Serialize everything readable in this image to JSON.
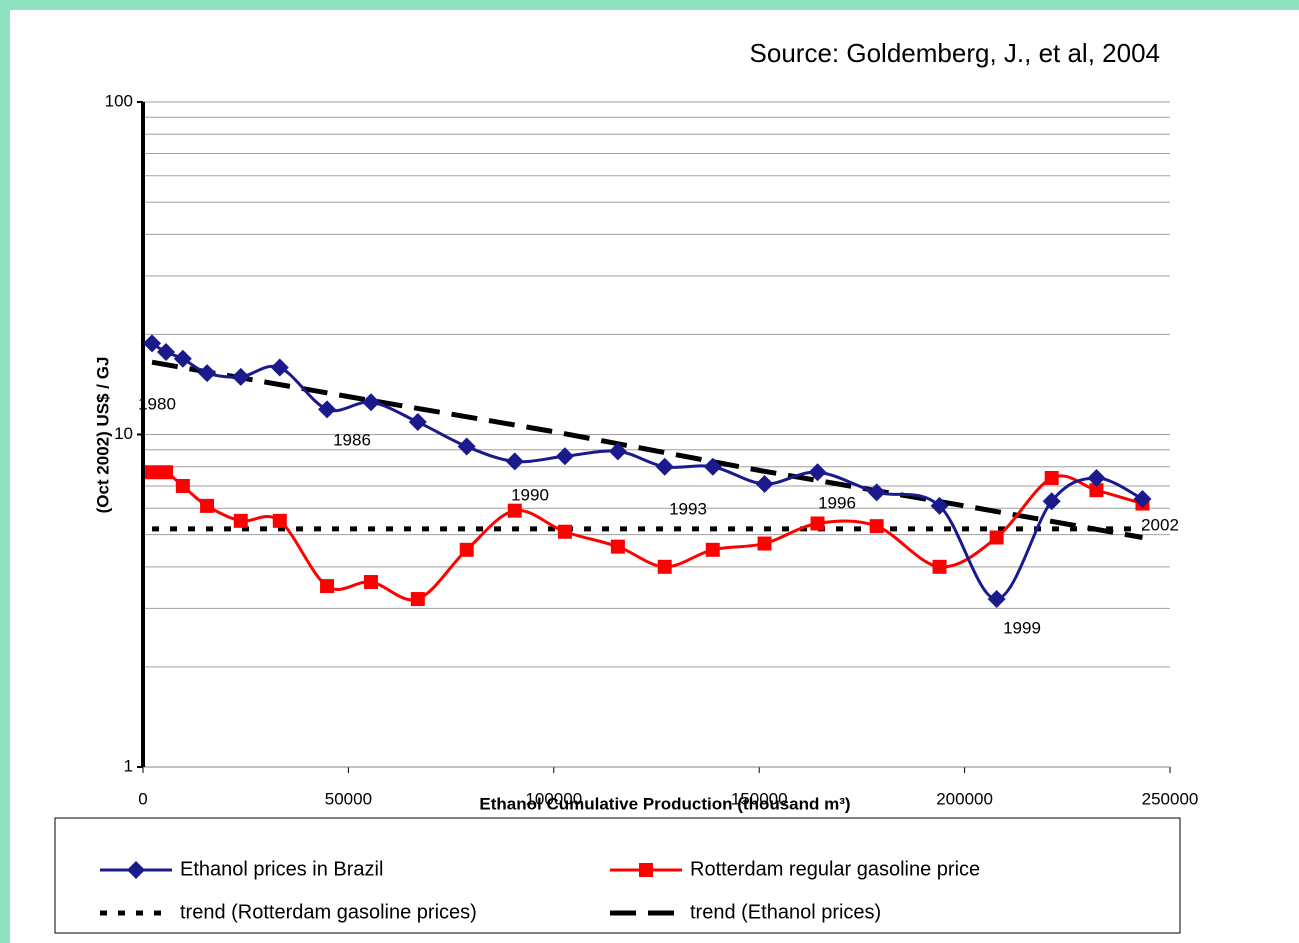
{
  "chart_data": {
    "type": "line",
    "subtitle": "Source: Goldemberg, J., et al, 2004",
    "x_label": "Ethanol Cumulative Production (thousand m³)",
    "y_label": "(Oct 2002) US$ / GJ",
    "log_y": true,
    "grid": true,
    "xlim": [
      0,
      250000
    ],
    "xticks": [
      0,
      50000,
      100000,
      150000,
      200000,
      250000
    ],
    "ylim": [
      1,
      100
    ],
    "yticks": [
      1,
      10,
      100
    ],
    "series": [
      {
        "name": "Ethanol prices in Brazil",
        "color": "#1a1a8c",
        "marker": "diamond",
        "line": "solid",
        "x": [
          2200,
          5600,
          9700,
          15600,
          23800,
          33300,
          44800,
          55500,
          66900,
          78800,
          90500,
          102700,
          115600,
          127000,
          138700,
          151300,
          164200,
          178600,
          193900,
          207800,
          221200,
          232100,
          243300
        ],
        "values": [
          18.8,
          17.7,
          16.9,
          15.3,
          14.9,
          15.9,
          11.9,
          12.5,
          10.9,
          9.2,
          8.3,
          8.6,
          8.9,
          8.0,
          8.0,
          7.1,
          7.7,
          6.7,
          6.1,
          3.2,
          6.3,
          7.4,
          6.4
        ]
      },
      {
        "name": "Rotterdam regular gasoline price",
        "color": "#ff0000",
        "marker": "square",
        "line": "solid",
        "x": [
          2200,
          5600,
          9700,
          15600,
          23800,
          33300,
          44800,
          55500,
          66900,
          78800,
          90500,
          102700,
          115600,
          127000,
          138700,
          151300,
          164200,
          178600,
          193900,
          207800,
          221200,
          232100,
          243300
        ],
        "values": [
          7.7,
          7.7,
          7.0,
          6.1,
          5.5,
          5.5,
          3.5,
          3.6,
          3.2,
          4.5,
          5.9,
          5.1,
          4.6,
          4.0,
          4.5,
          4.7,
          5.4,
          5.3,
          4.0,
          4.9,
          7.4,
          6.8,
          6.2
        ]
      },
      {
        "name": "trend (Rotterdam gasoline prices)",
        "color": "#000000",
        "marker": "none",
        "line": "dotted",
        "x": [
          2200,
          243300
        ],
        "values": [
          5.2,
          5.2
        ]
      },
      {
        "name": "trend (Ethanol prices)",
        "color": "#000000",
        "marker": "none",
        "line": "dashed",
        "x": [
          2200,
          50000,
          100000,
          150000,
          200000,
          243300
        ],
        "values": [
          16.5,
          13.0,
          10.2,
          7.8,
          6.1,
          4.9
        ]
      }
    ],
    "annotations": [
      "1980",
      "1986",
      "1990",
      "1993",
      "1996",
      "1999",
      "2002"
    ]
  }
}
